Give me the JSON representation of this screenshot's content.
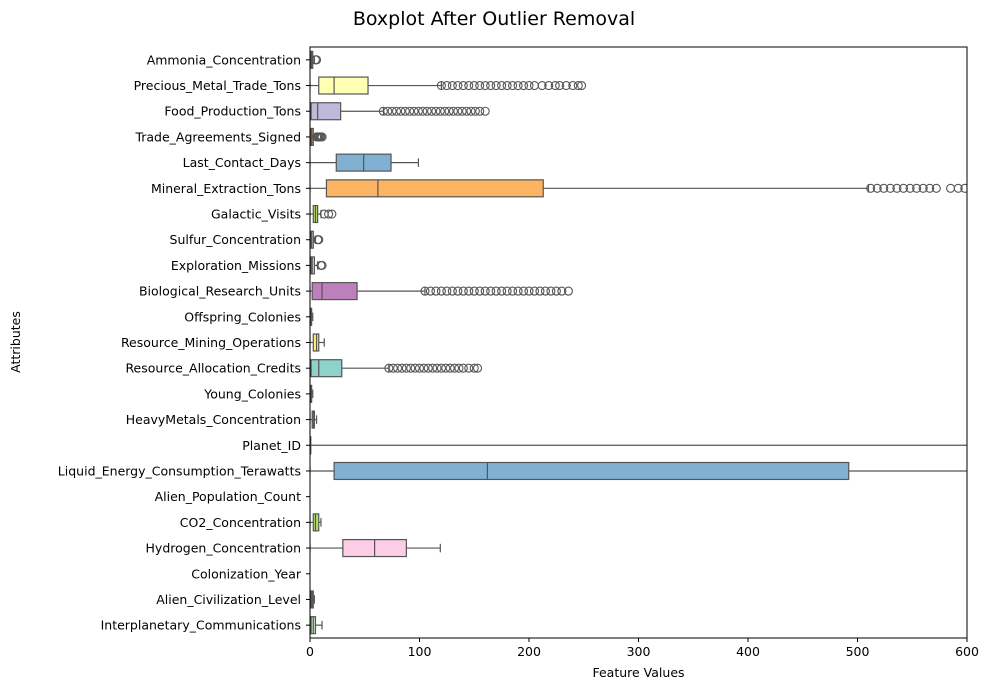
{
  "chart_data": {
    "type": "boxplot",
    "orientation": "horizontal",
    "title": "Boxplot After Outlier Removal",
    "xlabel": "Feature Values",
    "ylabel": "Attributes",
    "xlim": [
      0,
      600
    ],
    "xticks": [
      0,
      100,
      200,
      300,
      400,
      500,
      600
    ],
    "grid": false,
    "series": [
      {
        "name": "Ammonia_Concentration",
        "color": "#8dd3c7",
        "box": [
          0.5,
          1.5,
          2.5
        ],
        "whiskers": [
          0,
          4
        ],
        "outliers": [
          5,
          6
        ]
      },
      {
        "name": "Precious_Metal_Trade_Tons",
        "color": "#ffffb3",
        "box": [
          8,
          22,
          53
        ],
        "whiskers": [
          0,
          120
        ],
        "outliers": [
          120,
          125,
          130,
          135,
          140,
          145,
          150,
          155,
          160,
          165,
          170,
          175,
          180,
          185,
          190,
          195,
          200,
          205,
          212,
          218,
          224,
          228,
          234,
          240,
          245,
          248
        ]
      },
      {
        "name": "Food_Production_Tons",
        "color": "#bebada",
        "box": [
          1,
          7,
          28
        ],
        "whiskers": [
          0,
          67
        ],
        "outliers": [
          67,
          71,
          75,
          79,
          83,
          87,
          91,
          95,
          99,
          103,
          107,
          111,
          115,
          119,
          123,
          127,
          131,
          135,
          139,
          143,
          147,
          151,
          155,
          160
        ]
      },
      {
        "name": "Trade_Agreements_Signed",
        "color": "#fb8072",
        "box": [
          0.5,
          1.5,
          3
        ],
        "whiskers": [
          0,
          6
        ],
        "outliers": [
          6,
          7,
          8,
          9,
          10,
          11
        ]
      },
      {
        "name": "Last_Contact_Days",
        "color": "#80b1d3",
        "box": [
          24,
          49,
          74
        ],
        "whiskers": [
          0,
          99
        ],
        "outliers": []
      },
      {
        "name": "Mineral_Extraction_Tons",
        "color": "#fdb462",
        "box": [
          15,
          62,
          213
        ],
        "whiskers": [
          0,
          510
        ],
        "outliers": [
          512,
          518,
          524,
          530,
          536,
          542,
          548,
          554,
          560,
          566,
          572,
          585,
          592,
          598
        ]
      },
      {
        "name": "Galactic_Visits",
        "color": "#b3de69",
        "box": [
          3,
          5,
          7
        ],
        "whiskers": [
          0,
          10
        ],
        "outliers": [
          13,
          17,
          20
        ]
      },
      {
        "name": "Sulfur_Concentration",
        "color": "#fccde5",
        "box": [
          0.5,
          1.5,
          3
        ],
        "whiskers": [
          0,
          5
        ],
        "outliers": [
          7,
          8
        ]
      },
      {
        "name": "Exploration_Missions",
        "color": "#d9d9d9",
        "box": [
          1,
          2,
          4
        ],
        "whiskers": [
          0,
          7
        ],
        "outliers": [
          10,
          11
        ]
      },
      {
        "name": "Biological_Research_Units",
        "color": "#bc80bd",
        "box": [
          2,
          11,
          43
        ],
        "whiskers": [
          0,
          105
        ],
        "outliers": [
          105,
          110,
          115,
          120,
          125,
          130,
          135,
          140,
          145,
          150,
          155,
          160,
          165,
          170,
          175,
          180,
          185,
          190,
          195,
          200,
          205,
          210,
          215,
          220,
          225,
          230,
          236
        ]
      },
      {
        "name": "Offspring_Colonies",
        "color": "#ccebc5",
        "box": [
          0.5,
          1,
          1.5
        ],
        "whiskers": [
          0,
          2.5
        ],
        "outliers": []
      },
      {
        "name": "Resource_Mining_Operations",
        "color": "#ffed6f",
        "box": [
          3,
          6,
          8
        ],
        "whiskers": [
          0,
          13
        ],
        "outliers": []
      },
      {
        "name": "Resource_Allocation_Credits",
        "color": "#8dd3c7",
        "box": [
          1,
          8,
          29
        ],
        "whiskers": [
          0,
          72
        ],
        "outliers": [
          72,
          76,
          80,
          84,
          88,
          92,
          96,
          100,
          104,
          108,
          112,
          116,
          120,
          124,
          128,
          132,
          136,
          140,
          145,
          150,
          153
        ]
      },
      {
        "name": "Young_Colonies",
        "color": "#ffffb3",
        "box": [
          0.5,
          1,
          1.5
        ],
        "whiskers": [
          0,
          2.5
        ],
        "outliers": []
      },
      {
        "name": "HeavyMetals_Concentration",
        "color": "#bebada",
        "box": [
          2,
          3,
          4
        ],
        "whiskers": [
          0,
          6
        ],
        "outliers": []
      },
      {
        "name": "Planet_ID",
        "color": "#fb8072",
        "box": [
          -1,
          -1,
          -1
        ],
        "whiskers": [
          -1,
          600
        ],
        "outliers": []
      },
      {
        "name": "Liquid_Energy_Consumption_Terawatts",
        "color": "#80b1d3",
        "box": [
          22,
          162,
          492
        ],
        "whiskers": [
          0,
          600
        ],
        "outliers": []
      },
      {
        "name": "Alien_Population_Count",
        "color": "#fdb462",
        "box": [],
        "whiskers": [],
        "outliers": []
      },
      {
        "name": "CO2_Concentration",
        "color": "#b3de69",
        "box": [
          3,
          5,
          8
        ],
        "whiskers": [
          0,
          10
        ],
        "outliers": []
      },
      {
        "name": "Hydrogen_Concentration",
        "color": "#fccde5",
        "box": [
          30,
          59,
          88
        ],
        "whiskers": [
          0,
          119
        ],
        "outliers": []
      },
      {
        "name": "Colonization_Year",
        "color": "#d9d9d9",
        "box": [],
        "whiskers": [],
        "outliers": []
      },
      {
        "name": "Alien_Civilization_Level",
        "color": "#bc80bd",
        "box": [
          1,
          2,
          3
        ],
        "whiskers": [
          0,
          4
        ],
        "outliers": []
      },
      {
        "name": "Interplanetary_Communications",
        "color": "#ccebc5",
        "box": [
          1,
          3,
          5
        ],
        "whiskers": [
          0,
          11
        ],
        "outliers": []
      }
    ]
  }
}
